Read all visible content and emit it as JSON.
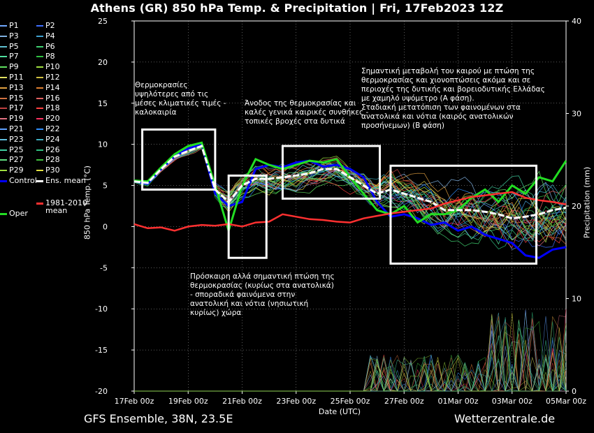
{
  "chart_data": {
    "type": "line",
    "title": "Athens  (GR)  850 hPa Temp. & Precipitation | Fri, 17Feb2023 12Z",
    "xlabel": "Date (UTC)",
    "ylabel": "850 hPa Temp. (°C)",
    "y2label": "Precipitation (mm)",
    "ylim": [
      -20,
      25
    ],
    "y2lim": [
      0,
      40
    ],
    "yticks": [
      -20,
      -15,
      -10,
      -5,
      0,
      5,
      10,
      15,
      20,
      25
    ],
    "y2ticks": [
      0,
      10,
      20,
      30,
      40
    ],
    "xticks": [
      "17Feb 00z",
      "19Feb 00z",
      "21Feb 00z",
      "23Feb 00z",
      "25Feb 00z",
      "27Feb 00z",
      "01Mar 00z",
      "03Mar 00z",
      "05Mar 00z"
    ],
    "x_days": [
      0,
      16
    ],
    "grid": true,
    "legend_position": "left, outside plot",
    "legend": [
      {
        "name": "P1",
        "color": "#6fa8ff"
      },
      {
        "name": "P2",
        "color": "#3f6fff"
      },
      {
        "name": "P3",
        "color": "#7fb0e0"
      },
      {
        "name": "P4",
        "color": "#3fa0d0"
      },
      {
        "name": "P5",
        "color": "#5fc0d0"
      },
      {
        "name": "P6",
        "color": "#3fd070"
      },
      {
        "name": "P7",
        "color": "#4fe0a0"
      },
      {
        "name": "P8",
        "color": "#2fc040"
      },
      {
        "name": "P9",
        "color": "#5fe05f"
      },
      {
        "name": "P10",
        "color": "#9fe040"
      },
      {
        "name": "P11",
        "color": "#e0e060"
      },
      {
        "name": "P12",
        "color": "#d0c040"
      },
      {
        "name": "P13",
        "color": "#e0a040"
      },
      {
        "name": "P14",
        "color": "#e08030"
      },
      {
        "name": "P15",
        "color": "#d07040"
      },
      {
        "name": "P16",
        "color": "#e06060"
      },
      {
        "name": "P17",
        "color": "#c04040"
      },
      {
        "name": "P18",
        "color": "#ff4040"
      },
      {
        "name": "P19",
        "color": "#e07080"
      },
      {
        "name": "P20",
        "color": "#ff3060"
      },
      {
        "name": "P21",
        "color": "#5fa0ff"
      },
      {
        "name": "P22",
        "color": "#3090ff"
      },
      {
        "name": "P23",
        "color": "#60c0e0"
      },
      {
        "name": "P24",
        "color": "#40b0c0"
      },
      {
        "name": "P25",
        "color": "#40d0a0"
      },
      {
        "name": "P26",
        "color": "#30c080"
      },
      {
        "name": "P27",
        "color": "#60e080"
      },
      {
        "name": "P28",
        "color": "#40c040"
      },
      {
        "name": "P29",
        "color": "#a0e040"
      },
      {
        "name": "P30",
        "color": "#e0e040"
      },
      {
        "name": "Control",
        "color": "#0000ff"
      },
      {
        "name": "Ens. mean",
        "color": "#ffffff"
      },
      {
        "name": "1981-2010\nmean",
        "color": "#ff3030"
      },
      {
        "name": "Oper",
        "color": "#22dd22"
      }
    ],
    "series": [
      {
        "name": "Control",
        "color": "#0000ff",
        "x": [
          0,
          0.5,
          1,
          1.5,
          2,
          2.5,
          3,
          3.5,
          4,
          4.5,
          5,
          5.5,
          6,
          6.5,
          7,
          7.5,
          8,
          8.5,
          9,
          9.5,
          10,
          10.5,
          11,
          11.5,
          12,
          12.5,
          13,
          13.5,
          14,
          14.5,
          15,
          15.5,
          16
        ],
        "values": [
          5.5,
          5.2,
          7,
          8.5,
          9.5,
          10,
          4,
          2.5,
          3,
          7,
          7.5,
          7.2,
          7.8,
          8,
          7.3,
          7.5,
          7,
          6,
          3,
          1.2,
          1.5,
          1,
          0.2,
          0.5,
          -0.5,
          0,
          -1,
          -1.5,
          -2,
          -3.5,
          -3.8,
          -2.8,
          -2.5
        ]
      },
      {
        "name": "Oper",
        "color": "#22dd22",
        "x": [
          0,
          0.5,
          1,
          1.5,
          2,
          2.5,
          3,
          3.5,
          4,
          4.5,
          5,
          5.5,
          6,
          6.5,
          7,
          7.5,
          8,
          8.5,
          9,
          9.5,
          10,
          10.5,
          11,
          11.5,
          12,
          12.5,
          13,
          13.5,
          14,
          14.5,
          15,
          15.5,
          16
        ],
        "values": [
          5.6,
          5.5,
          7.2,
          8.8,
          9.8,
          10.2,
          5,
          -0.5,
          5,
          8.2,
          7.5,
          7,
          7.5,
          8,
          7.8,
          8.2,
          6,
          4,
          2,
          1.5,
          2.5,
          0.5,
          1.5,
          1.5,
          2,
          3.5,
          4.5,
          3,
          5,
          4,
          6,
          5.5,
          8
        ]
      },
      {
        "name": "Ens. mean",
        "color": "#ffffff",
        "x": [
          0,
          0.5,
          1,
          1.5,
          2,
          2.5,
          3,
          3.5,
          4,
          4.5,
          5,
          5.5,
          6,
          6.5,
          7,
          7.5,
          8,
          8.5,
          9,
          9.5,
          10,
          10.5,
          11,
          11.5,
          12,
          12.5,
          13,
          13.5,
          14,
          14.5,
          15,
          15.5,
          16
        ],
        "values": [
          5.5,
          5.3,
          7,
          8.5,
          9.2,
          9.8,
          4.5,
          3,
          5,
          5.8,
          5.8,
          6,
          6.2,
          6.5,
          7,
          7,
          6,
          5,
          4,
          4.5,
          4,
          3.5,
          3,
          2,
          2,
          2,
          1.8,
          1.5,
          1,
          1.2,
          1.5,
          2,
          2.3
        ]
      },
      {
        "name": "1981-2010 mean",
        "color": "#ff3030",
        "x": [
          0,
          0.5,
          1,
          1.5,
          2,
          2.5,
          3,
          3.5,
          4,
          4.5,
          5,
          5.5,
          6,
          6.5,
          7,
          7.5,
          8,
          8.5,
          9,
          9.5,
          10,
          10.5,
          11,
          11.5,
          12,
          12.5,
          13,
          13.5,
          14,
          14.5,
          15,
          15.5,
          16
        ],
        "values": [
          0.3,
          -0.2,
          -0.1,
          -0.5,
          0,
          0.2,
          0.1,
          0.3,
          0,
          0.5,
          0.6,
          1.5,
          1.2,
          0.9,
          0.8,
          0.6,
          0.5,
          1,
          1.3,
          1.6,
          1.8,
          2,
          2.2,
          2.8,
          3.2,
          3.6,
          3.8,
          4,
          4.2,
          3.5,
          3.2,
          3,
          2.7
        ]
      }
    ],
    "annotations": [
      {
        "text": "Θερμοκρασίες\nυψηλότερες από τις\nμέσες κλιματικές τιμές -\nκαλοκαιρία",
        "box": {
          "x": [
            0.3,
            3
          ],
          "y": [
            4.5,
            11.8
          ]
        }
      },
      {
        "text": "Άνοδος της θερμοκρασίας και\nκαλές γενικά καιρικές συνθήκες -\nτοπικές βροχές στα δυτικά",
        "box": {
          "x": [
            5.5,
            9.1
          ],
          "y": [
            3.4,
            9.8
          ]
        }
      },
      {
        "text": "Σημαντική μεταβολή του καιρού με πτώση της\nθερμοκρασίας και χιονοπτώσεις ακόμα και σε\nπεριοχές της δυτικής και βορειοδυτικής Ελλάδας\nμε χαμηλό υψόμετρο (Α φάση).\nΣταδιακή μετατόπιση των φαινομένων στα\nανατολικά και νότια (καιρός ανατολικών\nπροσήνεμων) (Β φάση)",
        "box": {
          "x": [
            9.5,
            14.9
          ],
          "y": [
            -4.5,
            7.4
          ]
        }
      },
      {
        "text": "Πρόσκαιρη αλλά σημαντική πτώση της\nθερμοκρασίας (κυρίως στα ανατολικά)\n- σποραδικά φαινόμενα στην\nανατολική και νότια (νησιωτική\nκυρίως) χώρα",
        "box": {
          "x": [
            3.5,
            4.9
          ],
          "y": [
            -3.8,
            6.2
          ]
        }
      }
    ]
  },
  "footer": {
    "left": "GFS Ensemble, 38N, 23.5E",
    "right": "Wetterzentrale.de"
  }
}
